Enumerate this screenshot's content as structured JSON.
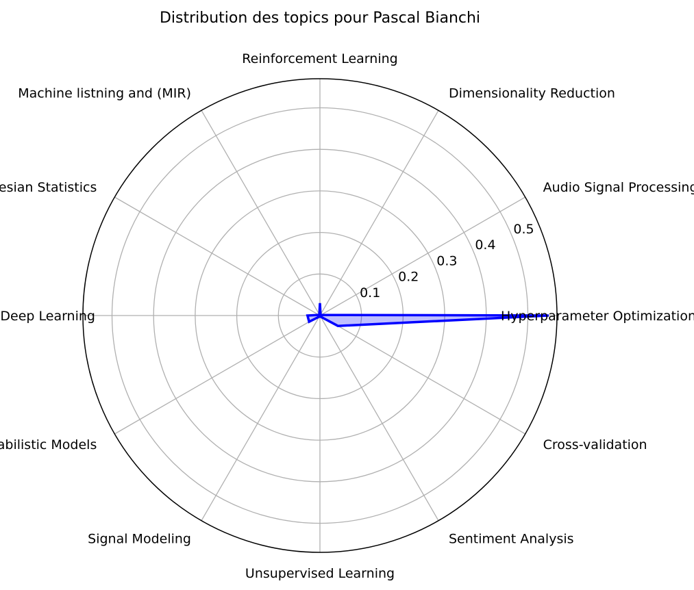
{
  "chart_data": {
    "type": "radar",
    "title": "Distribution des topics pour Pascal Bianchi",
    "categories": [
      "Hyperparameter Optimization",
      "Audio Signal Processing",
      "Dimensionality Reduction",
      "Reinforcement Learning",
      "Machine listning and (MIR)",
      "Bayesian Statistics",
      "Deep Learning",
      "Probabilistic Models",
      "Signal Modeling",
      "Unsupervised Learning",
      "Sentiment Analysis",
      "Cross-validation"
    ],
    "series": [
      {
        "values": [
          0.55,
          0.003,
          0.003,
          0.03,
          0.003,
          0.003,
          0.03,
          0.03,
          0.003,
          0.003,
          0.003,
          0.05
        ]
      }
    ],
    "rlim": [
      0,
      0.57
    ],
    "rticks": [
      0.1,
      0.2,
      0.3,
      0.4,
      0.5
    ],
    "rtick_labels": [
      "0.1",
      "0.2",
      "0.3",
      "0.4",
      "0.5"
    ],
    "grid": true,
    "colors": {
      "line": "#0000ff",
      "fill": "#0000ff",
      "grid": "#b0b0b0",
      "frame": "#000000"
    }
  }
}
